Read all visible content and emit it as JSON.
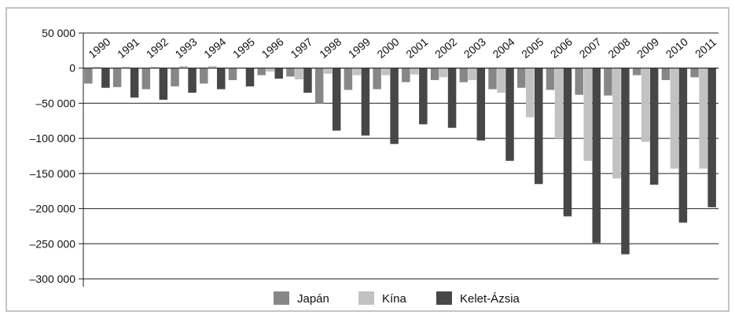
{
  "chart_data": {
    "type": "bar",
    "title": "",
    "xlabel": "",
    "ylabel": "",
    "ylim": [
      -300000,
      50000
    ],
    "yticks": [
      50000,
      0,
      -50000,
      -100000,
      -150000,
      -200000,
      -250000,
      -300000
    ],
    "ytick_labels": [
      "50 000",
      "0",
      "–50 000",
      "–100 000",
      "–150 000",
      "–200 000",
      "–250 000",
      "–300 000"
    ],
    "grid": true,
    "legend_position": "bottom",
    "categories": [
      "1990",
      "1991",
      "1992",
      "1993",
      "1994",
      "1995",
      "1996",
      "1997",
      "1998",
      "1999",
      "2000",
      "2001",
      "2002",
      "2003",
      "2004",
      "2005",
      "2006",
      "2007",
      "2008",
      "2009",
      "2010",
      "2011"
    ],
    "series": [
      {
        "name": "Japán",
        "color": "#878787",
        "values": [
          -22000,
          -27000,
          -30000,
          -26000,
          -22000,
          -17000,
          -10000,
          -12000,
          -50000,
          -31000,
          -30000,
          -20000,
          -17000,
          -20000,
          -30000,
          -28000,
          -31000,
          -38000,
          -39000,
          -10000,
          -17000,
          -13000
        ]
      },
      {
        "name": "Kína",
        "color": "#c2c2c2",
        "values": [
          2000,
          2000,
          2000,
          3000,
          3000,
          1000,
          -5000,
          -16000,
          -8000,
          -10000,
          -10000,
          -9000,
          -13000,
          -17000,
          -35000,
          -70000,
          -100000,
          -132000,
          -157000,
          -105000,
          -143000,
          -143000
        ]
      },
      {
        "name": "Kelet-Ázsia",
        "color": "#474747",
        "values": [
          -28000,
          -42000,
          -45000,
          -35000,
          -30000,
          -26000,
          -15000,
          -35000,
          -89000,
          -96000,
          -108000,
          -80000,
          -85000,
          -103000,
          -132000,
          -165000,
          -211000,
          -249000,
          -265000,
          -166000,
          -220000,
          -198000
        ]
      }
    ]
  }
}
